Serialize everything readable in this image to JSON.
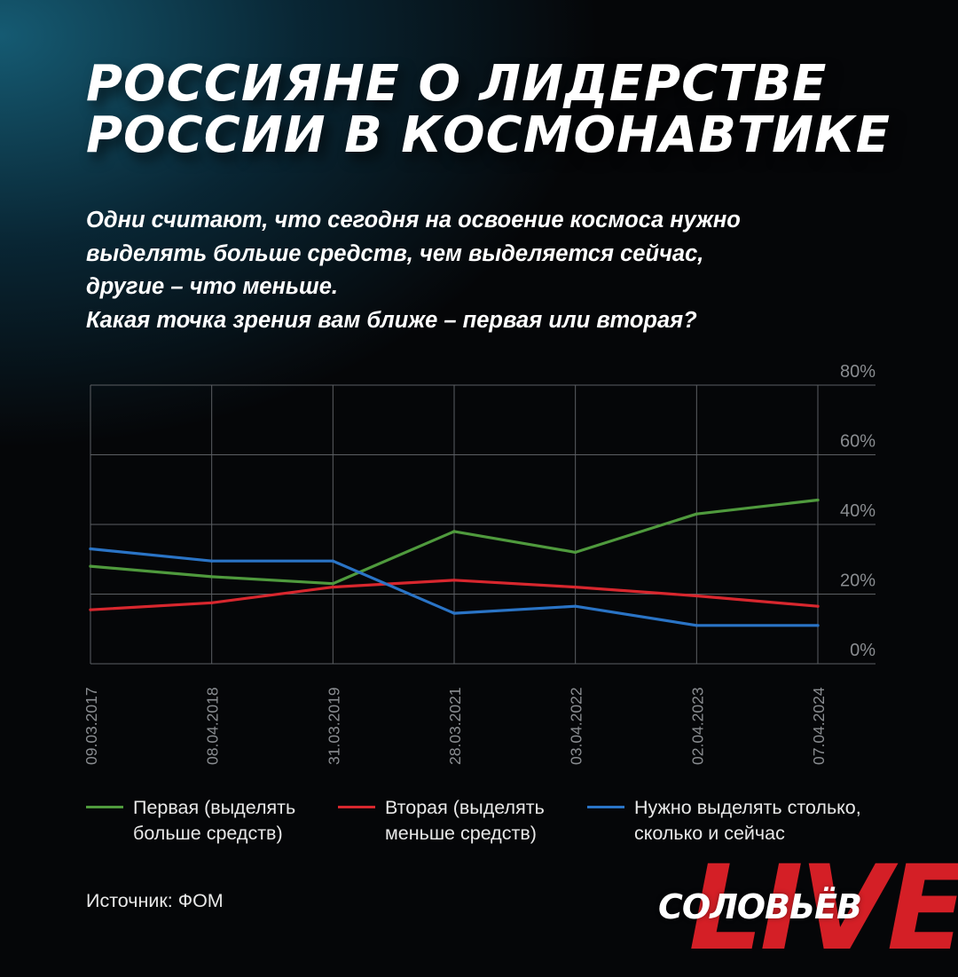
{
  "header": {
    "title_lines": [
      "РОССИЯНЕ О ЛИДЕРСТВЕ",
      "РОССИИ В КОСМОНАВТИКЕ"
    ],
    "question_lines": [
      "Одни считают, что сегодня на освоение космоса нужно",
      "выделять больше средств, чем выделяется сейчас,",
      "другие – что меньше.",
      "Какая точка зрения вам ближе – первая или вторая?"
    ]
  },
  "chart_data": {
    "type": "line",
    "x": [
      "09.03.2017",
      "08.04.2018",
      "31.03.2019",
      "28.03.2021",
      "03.04.2022",
      "02.04.2023",
      "07.04.2024"
    ],
    "ylim": [
      0,
      80
    ],
    "yticks": [
      "80%",
      "60%",
      "40%",
      "20%",
      "0%"
    ],
    "ytick_values": [
      80,
      60,
      40,
      20,
      0
    ],
    "grid": true,
    "y_axis_side": "right",
    "series": [
      {
        "name_lines": [
          "Первая (выделять",
          "больше средств)"
        ],
        "color": "#4f9a3d",
        "values": [
          28,
          25,
          23,
          38,
          32,
          43,
          47
        ]
      },
      {
        "name_lines": [
          "Вторая (выделять",
          "меньше средств)"
        ],
        "color": "#d8272e",
        "values": [
          15.5,
          17.5,
          22,
          24,
          22,
          19.5,
          16.5
        ]
      },
      {
        "name_lines": [
          "Нужно выделять столько,",
          "сколько и сейчас"
        ],
        "color": "#2a74c6",
        "values": [
          33,
          29.5,
          29.5,
          14.5,
          16.5,
          11,
          11
        ]
      }
    ]
  },
  "footer": {
    "source": "Источник: ФОМ",
    "logo_name": "СОЛОВЬЁВ",
    "logo_live": "LIVE"
  }
}
